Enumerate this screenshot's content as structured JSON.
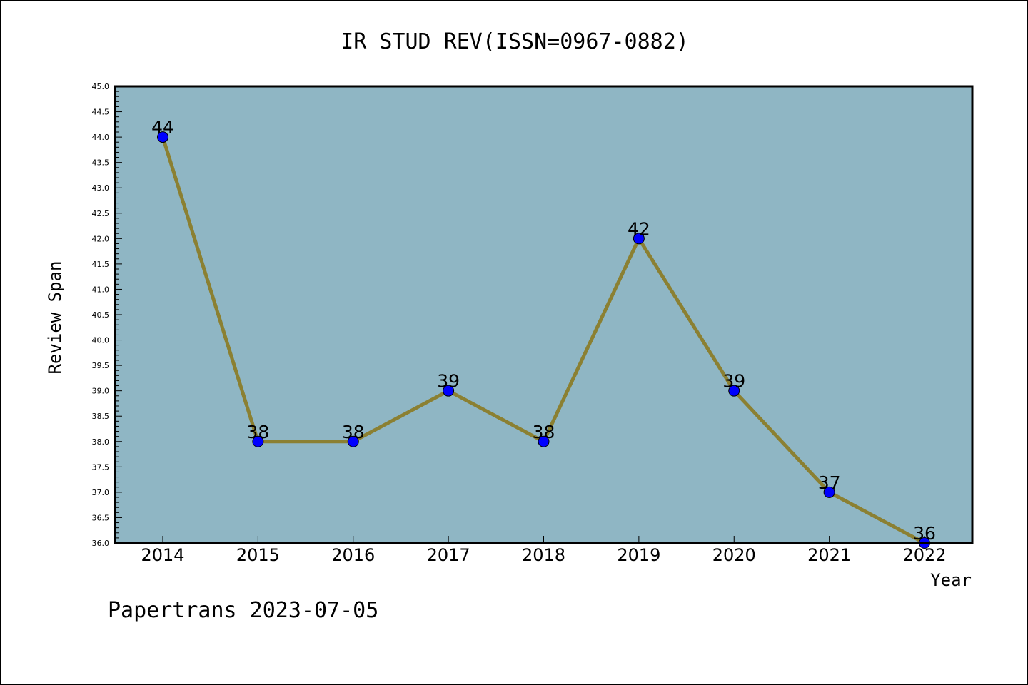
{
  "chart_data": {
    "type": "line",
    "title": "IR STUD REV(ISSN=0967-0882)",
    "xlabel": "Year",
    "ylabel": "Review Span",
    "footer": "Papertrans 2023-07-05",
    "categories": [
      "2014",
      "2015",
      "2016",
      "2017",
      "2018",
      "2019",
      "2020",
      "2021",
      "2022"
    ],
    "values": [
      44,
      38,
      38,
      39,
      38,
      42,
      39,
      37,
      36
    ],
    "data_labels": [
      "44",
      "38",
      "38",
      "39",
      "38",
      "42",
      "39",
      "37",
      "36"
    ],
    "ylim": [
      36.0,
      45.0
    ],
    "yticks": [
      "36.0",
      "36.5",
      "37.0",
      "37.5",
      "38.0",
      "38.5",
      "39.0",
      "39.5",
      "40.0",
      "40.5",
      "41.0",
      "41.5",
      "42.0",
      "42.5",
      "43.0",
      "43.5",
      "44.0",
      "44.5",
      "45.0"
    ],
    "grid": false,
    "colors": {
      "plot_background": "#8fb6c4",
      "line": "#8b8032",
      "marker": "#0000ff",
      "axis": "#000000"
    }
  }
}
